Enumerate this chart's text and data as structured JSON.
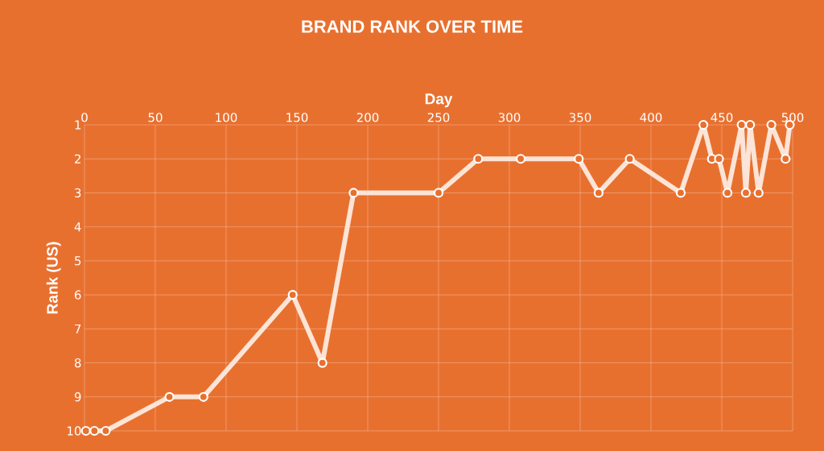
{
  "chart_data": {
    "type": "line",
    "title": "BRAND RANK OVER TIME",
    "xlabel": "Day",
    "ylabel": "Rank (US)",
    "x": [
      1,
      7,
      15,
      60,
      84,
      147,
      168,
      190,
      250,
      278,
      308,
      349,
      363,
      385,
      421,
      437,
      443,
      448,
      454,
      464,
      467,
      470,
      476,
      485,
      495,
      498
    ],
    "series": [
      {
        "color": "#fce4d6",
        "values": [
          10,
          10,
          10,
          9,
          9,
          6,
          8,
          3,
          3,
          2,
          2,
          2,
          3,
          2,
          3,
          1,
          2,
          2,
          3,
          1,
          3,
          1,
          3,
          1,
          2,
          1
        ]
      }
    ],
    "xlim": [
      0,
      500
    ],
    "xticks": [
      0,
      50,
      100,
      150,
      200,
      250,
      300,
      350,
      400,
      450,
      500
    ],
    "ylim": [
      10,
      1
    ],
    "yticks": [
      1,
      2,
      3,
      4,
      5,
      6,
      7,
      8,
      9,
      10
    ],
    "grid": true,
    "marker": "circle",
    "line_style": "solid"
  }
}
